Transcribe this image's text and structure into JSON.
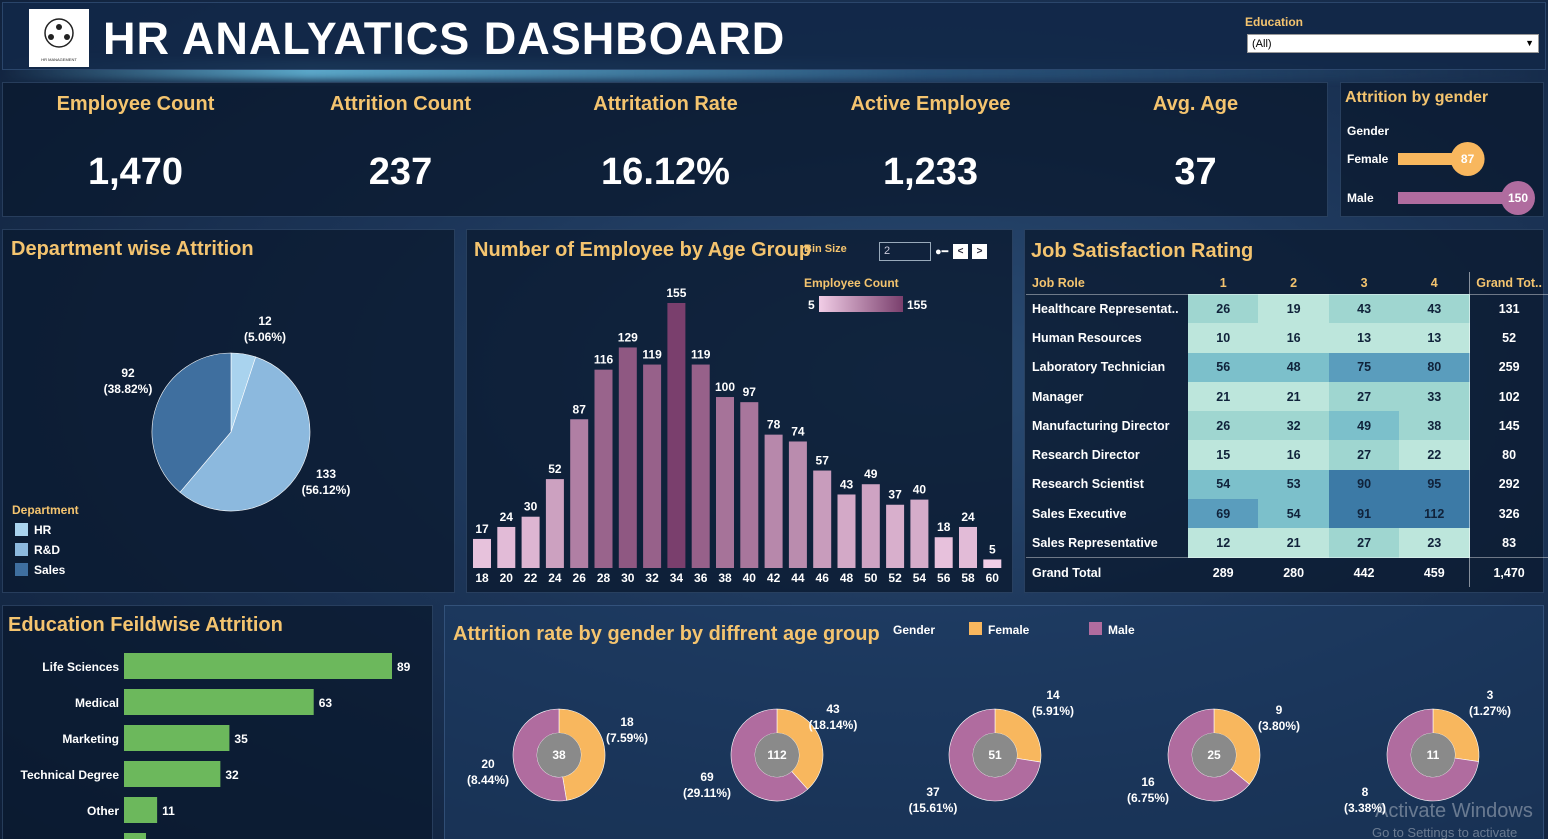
{
  "header": {
    "title": "HR ANALYATICS DASHBOARD",
    "logo_text": "HR MANAGEMENT"
  },
  "filter": {
    "label": "Education",
    "value": "(All)"
  },
  "kpis": [
    {
      "title": "Employee Count",
      "value": "1,470"
    },
    {
      "title": "Attrition Count",
      "value": "237"
    },
    {
      "title": "Attritation Rate",
      "value": "16.12%"
    },
    {
      "title": "Active Employee",
      "value": "1,233"
    },
    {
      "title": "Avg. Age",
      "value": "37"
    }
  ],
  "colors": {
    "accent": "#f4c46f",
    "female": "#f8b75e",
    "male": "#b06c9f",
    "bar_green": "#6cb85c"
  },
  "chart_data": [
    {
      "id": "gender",
      "type": "bar",
      "title": "Attrition by gender",
      "ylabel": "Gender",
      "categories": [
        "Female",
        "Male"
      ],
      "values": [
        87,
        150
      ]
    },
    {
      "id": "department",
      "type": "pie",
      "title": "Department wise Attrition",
      "legend_title": "Department",
      "categories": [
        "HR",
        "R&D",
        "Sales"
      ],
      "values": [
        12,
        133,
        92
      ],
      "labels": [
        "(5.06%)",
        "(56.12%)",
        "(38.82%)"
      ],
      "colors": [
        "#a9d3ee",
        "#8cb9de",
        "#3f6f9f"
      ]
    },
    {
      "id": "age",
      "type": "bar",
      "title": "Number of Employee by Age Group",
      "bin_label": "Bin Size",
      "bin_value": "2",
      "legend_title": "Employee Count",
      "legend_min": "5",
      "legend_max": "155",
      "categories": [
        "18",
        "20",
        "22",
        "24",
        "26",
        "28",
        "30",
        "32",
        "34",
        "36",
        "38",
        "40",
        "42",
        "44",
        "46",
        "48",
        "50",
        "52",
        "54",
        "56",
        "58",
        "60"
      ],
      "values": [
        17,
        24,
        30,
        52,
        87,
        116,
        129,
        119,
        155,
        119,
        100,
        97,
        78,
        74,
        57,
        43,
        49,
        37,
        40,
        18,
        24,
        5
      ]
    },
    {
      "id": "job_satisfaction",
      "type": "table",
      "title": "Job Satisfaction Rating",
      "columns": [
        "Job Role",
        "1",
        "2",
        "3",
        "4",
        "Grand Tot.."
      ],
      "rows": [
        {
          "role": "Healthcare Representat..",
          "values": [
            26,
            19,
            43,
            43
          ],
          "total": "131"
        },
        {
          "role": "Human Resources",
          "values": [
            10,
            16,
            13,
            13
          ],
          "total": "52"
        },
        {
          "role": "Laboratory Technician",
          "values": [
            56,
            48,
            75,
            80
          ],
          "total": "259"
        },
        {
          "role": "Manager",
          "values": [
            21,
            21,
            27,
            33
          ],
          "total": "102"
        },
        {
          "role": "Manufacturing Director",
          "values": [
            26,
            32,
            49,
            38
          ],
          "total": "145"
        },
        {
          "role": "Research Director",
          "values": [
            15,
            16,
            27,
            22
          ],
          "total": "80"
        },
        {
          "role": "Research Scientist",
          "values": [
            54,
            53,
            90,
            95
          ],
          "total": "292"
        },
        {
          "role": "Sales Executive",
          "values": [
            69,
            54,
            91,
            112
          ],
          "total": "326"
        },
        {
          "role": "Sales Representative",
          "values": [
            12,
            21,
            27,
            23
          ],
          "total": "83"
        }
      ],
      "grand": {
        "label": "Grand Total",
        "values": [
          "289",
          "280",
          "442",
          "459"
        ],
        "total": "1,470"
      }
    },
    {
      "id": "education",
      "type": "bar",
      "title": "Education Feildwise Attrition",
      "categories": [
        "Life Sciences",
        "Medical",
        "Marketing",
        "Technical Degree",
        "Other"
      ],
      "values": [
        89,
        63,
        35,
        32,
        11
      ]
    },
    {
      "id": "age_gender",
      "type": "pie",
      "title": "Attrition rate by gender by diffrent age group",
      "legend_title": "Gender",
      "series_names": [
        "Female",
        "Male"
      ],
      "groups": [
        {
          "total": "38",
          "female": 18,
          "female_label": "(7.59%)",
          "male": 20,
          "male_label": "(8.44%)"
        },
        {
          "total": "112",
          "female": 43,
          "female_label": "(18.14%)",
          "male": 69,
          "male_label": "(29.11%)"
        },
        {
          "total": "51",
          "female": 14,
          "female_label": "(5.91%)",
          "male": 37,
          "male_label": "(15.61%)"
        },
        {
          "total": "25",
          "female": 9,
          "female_label": "(3.80%)",
          "male": 16,
          "male_label": "(6.75%)"
        },
        {
          "total": "11",
          "female": 3,
          "female_label": "(1.27%)",
          "male": 8,
          "male_label": "(3.38%)"
        }
      ]
    }
  ],
  "watermark": {
    "line1": "Activate Windows",
    "line2": "Go to Settings to activate"
  }
}
